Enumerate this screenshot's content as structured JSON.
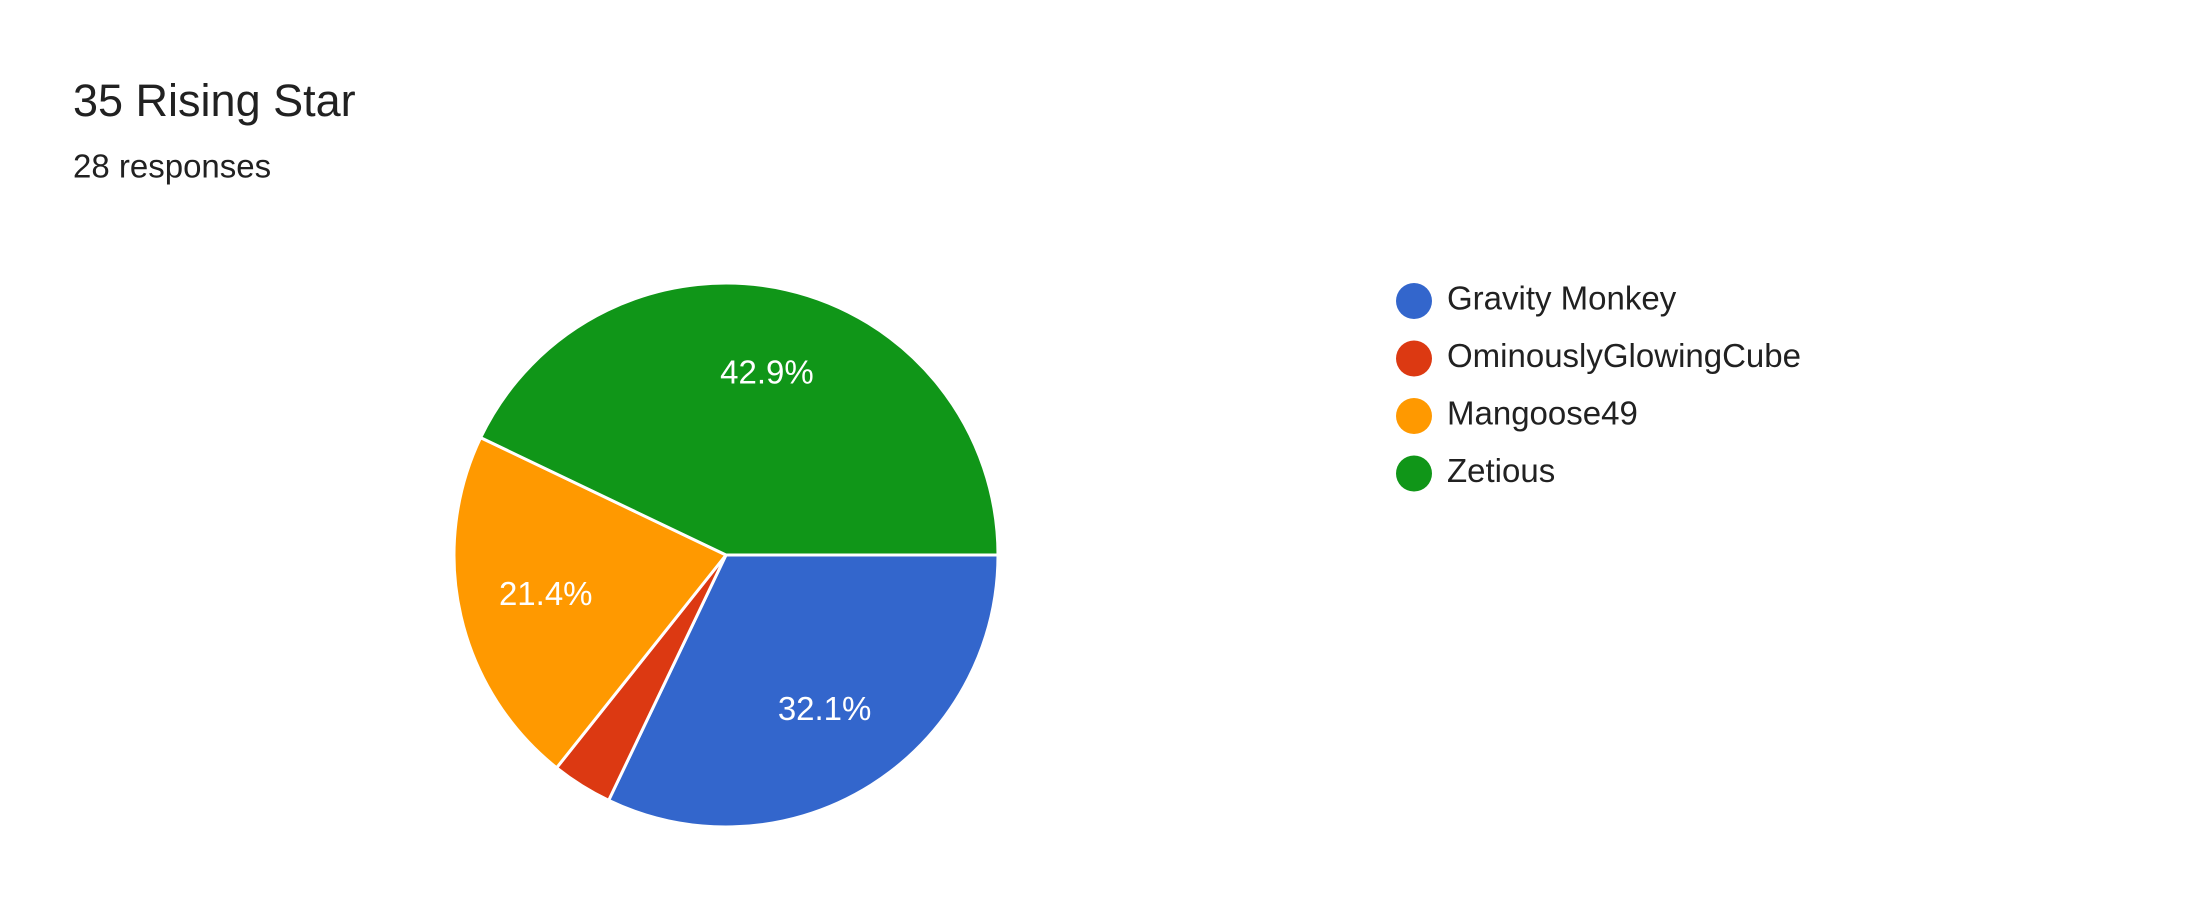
{
  "chart_data": {
    "type": "pie",
    "title": "35 Rising Star",
    "subtitle": "28 responses",
    "categories": [
      "Gravity Monkey",
      "OminouslyGlowingCube",
      "Mangoose49",
      "Zetious"
    ],
    "values": [
      32.1,
      3.6,
      21.4,
      42.9
    ],
    "value_labels": [
      "32.1%",
      null,
      "21.4%",
      "42.9%"
    ],
    "colors": [
      "#3366cc",
      "#dc3912",
      "#ff9900",
      "#109618"
    ],
    "legend": "right"
  }
}
